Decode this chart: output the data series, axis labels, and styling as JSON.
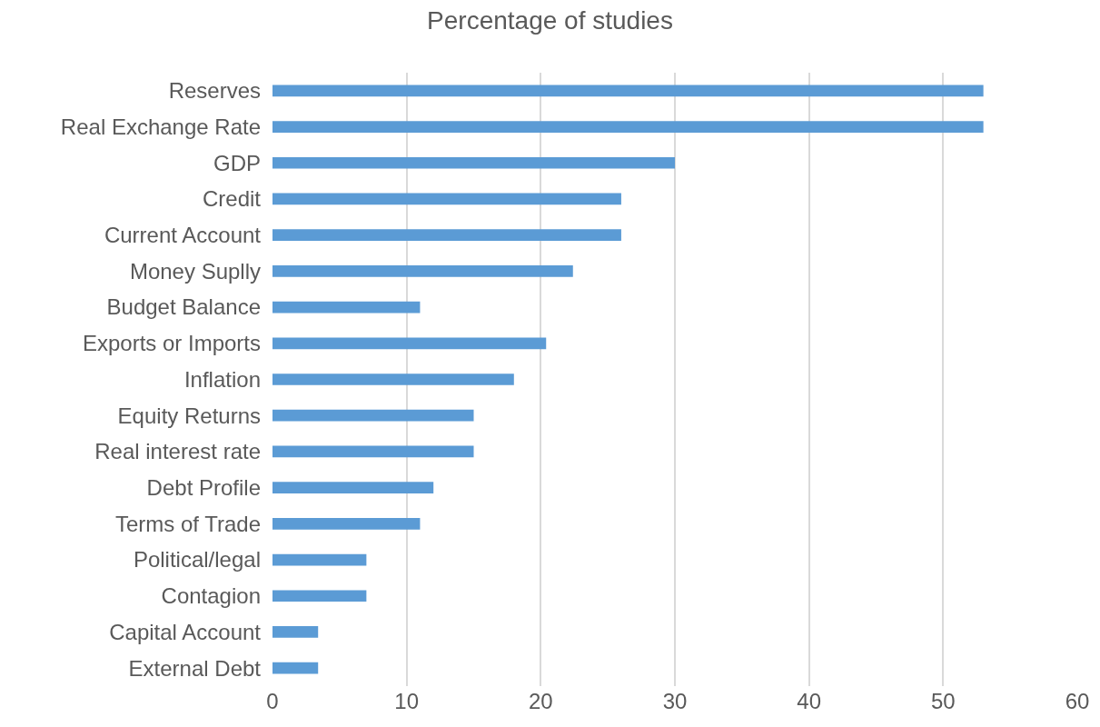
{
  "chart_data": {
    "type": "bar",
    "title": "Percentage of studies",
    "orientation": "horizontal",
    "categories": [
      "Reserves",
      "Real Exchange Rate",
      "GDP",
      "Credit",
      "Current Account",
      "Money Suplly",
      "Budget Balance",
      "Exports or Imports",
      "Inflation",
      "Equity Returns",
      "Real interest rate",
      "Debt Profile",
      "Terms of Trade",
      "Political/legal",
      "Contagion",
      "Capital Account",
      "External Debt"
    ],
    "values": [
      53,
      53,
      30,
      26,
      26,
      22.4,
      11,
      20.4,
      18,
      15,
      15,
      12,
      11,
      7,
      7,
      3.4,
      3.4
    ],
    "color": "#5b9bd5",
    "xlim": [
      0,
      60
    ],
    "xticks": [
      0,
      10,
      20,
      30,
      40,
      50,
      60
    ],
    "grid": "x"
  }
}
